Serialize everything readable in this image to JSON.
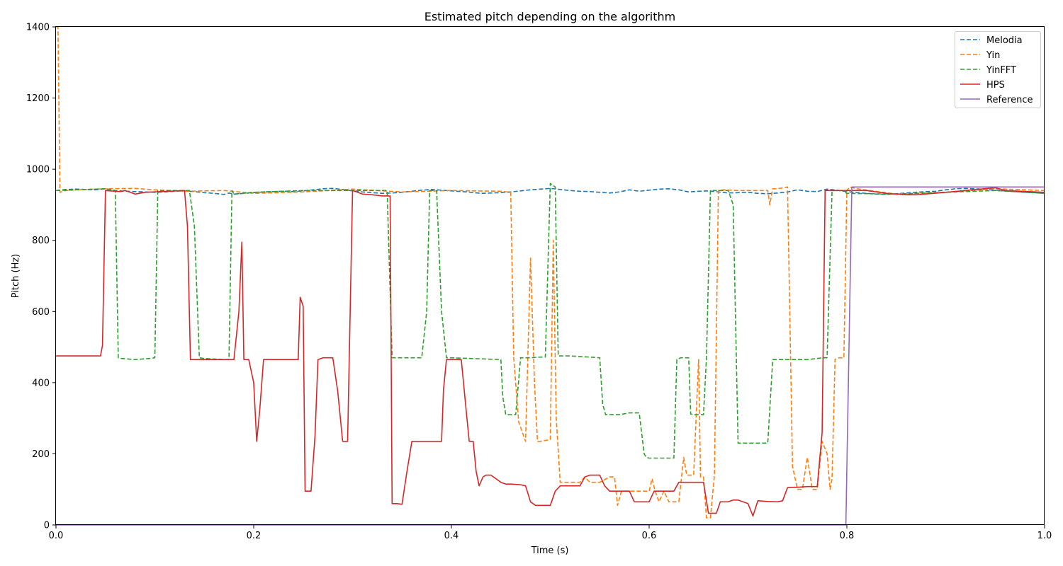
{
  "chart_data": {
    "type": "line",
    "title": "Estimated pitch depending on the algorithm",
    "xlabel": "Time (s)",
    "ylabel": "Pitch (Hz)",
    "xlim": [
      0.0,
      1.0
    ],
    "ylim": [
      0,
      1400
    ],
    "xticks": [
      0.0,
      0.2,
      0.4,
      0.6,
      0.8,
      1.0
    ],
    "xtick_labels": [
      "0.0",
      "0.2",
      "0.4",
      "0.6",
      "0.8",
      "1.0"
    ],
    "yticks": [
      0,
      200,
      400,
      600,
      800,
      1000,
      1200,
      1400
    ],
    "ytick_labels": [
      "0",
      "200",
      "400",
      "600",
      "800",
      "1000",
      "1200",
      "1400"
    ],
    "grid": false,
    "legend_position": "top-right",
    "series": [
      {
        "name": "Melodia",
        "color": "#1f77b4",
        "style": "dashed",
        "x": [
          0.0,
          0.01,
          0.02,
          0.03,
          0.04,
          0.05,
          0.06,
          0.07,
          0.08,
          0.09,
          0.1,
          0.11,
          0.12,
          0.13,
          0.14,
          0.15,
          0.16,
          0.17,
          0.175,
          0.18,
          0.19,
          0.2,
          0.21,
          0.22,
          0.23,
          0.24,
          0.25,
          0.26,
          0.27,
          0.28,
          0.29,
          0.3,
          0.31,
          0.32,
          0.33,
          0.34,
          0.35,
          0.36,
          0.37,
          0.38,
          0.39,
          0.4,
          0.41,
          0.42,
          0.43,
          0.44,
          0.45,
          0.46,
          0.47,
          0.48,
          0.49,
          0.5,
          0.51,
          0.52,
          0.53,
          0.54,
          0.55,
          0.56,
          0.57,
          0.58,
          0.59,
          0.6,
          0.61,
          0.62,
          0.63,
          0.64,
          0.65,
          0.66,
          0.67,
          0.68,
          0.69,
          0.7,
          0.71,
          0.72,
          0.73,
          0.74,
          0.75,
          0.76,
          0.77,
          0.78,
          0.79,
          0.8,
          0.81,
          0.82,
          0.83,
          0.84,
          0.85,
          0.86,
          0.87,
          0.88,
          0.89,
          0.9,
          0.91,
          0.92,
          0.93,
          0.94,
          0.95,
          0.96,
          0.97,
          0.98,
          0.99,
          1.0
        ],
        "y": [
          940,
          943,
          944,
          943,
          942,
          945,
          940,
          938,
          937,
          936,
          935,
          936,
          938,
          939,
          937,
          934,
          932,
          929,
          933,
          930,
          932,
          934,
          936,
          937,
          938,
          937,
          939,
          942,
          945,
          946,
          943,
          939,
          936,
          934,
          932,
          933,
          935,
          938,
          941,
          943,
          941,
          939,
          937,
          935,
          932,
          933,
          934,
          936,
          939,
          942,
          944,
          946,
          943,
          940,
          938,
          937,
          935,
          933,
          936,
          942,
          938,
          941,
          944,
          945,
          942,
          936,
          938,
          939,
          936,
          933,
          934,
          935,
          932,
          931,
          933,
          936,
          942,
          938,
          937,
          944,
          941,
          937,
          934,
          932,
          930,
          929,
          931,
          933,
          935,
          937,
          938,
          942,
          945,
          946,
          945,
          943,
          941,
          939,
          937,
          935,
          934,
          932
        ]
      },
      {
        "name": "Yin",
        "color": "#ff7f0e",
        "style": "dashed",
        "x": [
          0.0,
          0.002,
          0.004,
          0.01,
          0.02,
          0.05,
          0.08,
          0.1,
          0.13,
          0.17,
          0.2,
          0.25,
          0.3,
          0.35,
          0.4,
          0.45,
          0.46,
          0.463,
          0.468,
          0.475,
          0.48,
          0.484,
          0.487,
          0.49,
          0.5,
          0.503,
          0.506,
          0.51,
          0.52,
          0.53,
          0.535,
          0.54,
          0.55,
          0.56,
          0.565,
          0.568,
          0.572,
          0.58,
          0.59,
          0.6,
          0.603,
          0.606,
          0.61,
          0.615,
          0.62,
          0.625,
          0.63,
          0.635,
          0.638,
          0.64,
          0.645,
          0.65,
          0.652,
          0.655,
          0.658,
          0.662,
          0.666,
          0.67,
          0.675,
          0.69,
          0.72,
          0.722,
          0.725,
          0.73,
          0.74,
          0.745,
          0.75,
          0.755,
          0.76,
          0.765,
          0.77,
          0.775,
          0.78,
          0.783,
          0.785,
          0.788,
          0.792,
          0.797,
          0.8,
          0.803,
          0.81,
          0.85,
          0.9,
          0.95,
          1.0
        ],
        "y": [
          1400,
          1400,
          935,
          940,
          942,
          945,
          946,
          942,
          938,
          940,
          932,
          936,
          944,
          936,
          940,
          938,
          935,
          470,
          290,
          235,
          750,
          400,
          235,
          235,
          240,
          800,
          300,
          120,
          120,
          120,
          135,
          120,
          120,
          135,
          135,
          55,
          95,
          95,
          95,
          95,
          130,
          95,
          65,
          95,
          65,
          65,
          65,
          190,
          140,
          140,
          140,
          465,
          135,
          135,
          20,
          20,
          140,
          940,
          942,
          940,
          940,
          900,
          945,
          945,
          950,
          165,
          100,
          100,
          190,
          100,
          100,
          235,
          200,
          100,
          130,
          465,
          470,
          470,
          940,
          950,
          945,
          930,
          935,
          945,
          940
        ]
      },
      {
        "name": "YinFFT",
        "color": "#2ca02c",
        "style": "dashed",
        "x": [
          0.0,
          0.05,
          0.06,
          0.063,
          0.066,
          0.08,
          0.095,
          0.1,
          0.103,
          0.107,
          0.135,
          0.14,
          0.145,
          0.15,
          0.17,
          0.175,
          0.178,
          0.18,
          0.2,
          0.25,
          0.3,
          0.33,
          0.335,
          0.34,
          0.35,
          0.37,
          0.375,
          0.378,
          0.38,
          0.385,
          0.39,
          0.395,
          0.4,
          0.45,
          0.452,
          0.455,
          0.46,
          0.465,
          0.47,
          0.48,
          0.49,
          0.495,
          0.5,
          0.505,
          0.508,
          0.51,
          0.52,
          0.54,
          0.55,
          0.553,
          0.556,
          0.56,
          0.57,
          0.58,
          0.59,
          0.595,
          0.597,
          0.6,
          0.62,
          0.625,
          0.628,
          0.632,
          0.64,
          0.642,
          0.645,
          0.65,
          0.655,
          0.658,
          0.662,
          0.67,
          0.68,
          0.685,
          0.69,
          0.695,
          0.7,
          0.71,
          0.72,
          0.725,
          0.73,
          0.74,
          0.75,
          0.76,
          0.77,
          0.775,
          0.78,
          0.785,
          0.79,
          0.795,
          0.8,
          0.85,
          0.9,
          0.95,
          1.0
        ],
        "y": [
          940,
          945,
          940,
          470,
          468,
          465,
          468,
          470,
          940,
          940,
          940,
          840,
          470,
          468,
          465,
          465,
          940,
          930,
          935,
          940,
          940,
          940,
          940,
          470,
          470,
          470,
          600,
          940,
          940,
          940,
          600,
          470,
          470,
          465,
          360,
          310,
          310,
          310,
          470,
          470,
          472,
          472,
          960,
          950,
          475,
          475,
          475,
          472,
          470,
          340,
          310,
          310,
          310,
          315,
          315,
          200,
          190,
          188,
          188,
          188,
          465,
          470,
          470,
          312,
          310,
          310,
          310,
          470,
          940,
          940,
          940,
          900,
          230,
          230,
          230,
          230,
          230,
          465,
          465,
          465,
          465,
          465,
          468,
          470,
          470,
          940,
          940,
          940,
          932,
          930,
          935,
          940,
          932
        ]
      },
      {
        "name": "HPS",
        "color": "#d62728",
        "style": "solid",
        "x": [
          0.0,
          0.045,
          0.047,
          0.05,
          0.065,
          0.07,
          0.08,
          0.09,
          0.13,
          0.133,
          0.136,
          0.15,
          0.18,
          0.185,
          0.188,
          0.19,
          0.195,
          0.2,
          0.203,
          0.206,
          0.21,
          0.22,
          0.245,
          0.247,
          0.25,
          0.252,
          0.258,
          0.262,
          0.265,
          0.27,
          0.28,
          0.285,
          0.29,
          0.295,
          0.3,
          0.305,
          0.31,
          0.32,
          0.33,
          0.338,
          0.34,
          0.345,
          0.35,
          0.355,
          0.36,
          0.365,
          0.37,
          0.38,
          0.39,
          0.392,
          0.395,
          0.4,
          0.41,
          0.415,
          0.418,
          0.422,
          0.425,
          0.428,
          0.432,
          0.435,
          0.44,
          0.45,
          0.455,
          0.46,
          0.47,
          0.475,
          0.48,
          0.485,
          0.49,
          0.5,
          0.505,
          0.51,
          0.53,
          0.535,
          0.54,
          0.55,
          0.555,
          0.56,
          0.57,
          0.58,
          0.585,
          0.59,
          0.6,
          0.605,
          0.61,
          0.62,
          0.625,
          0.63,
          0.64,
          0.65,
          0.655,
          0.66,
          0.668,
          0.672,
          0.68,
          0.685,
          0.69,
          0.695,
          0.7,
          0.705,
          0.71,
          0.72,
          0.73,
          0.735,
          0.74,
          0.75,
          0.76,
          0.77,
          0.775,
          0.778,
          0.78,
          0.8,
          0.82,
          0.84,
          0.86,
          0.87,
          0.9,
          0.95,
          0.96,
          1.0
        ],
        "y": [
          475,
          475,
          505,
          940,
          937,
          940,
          930,
          935,
          940,
          840,
          465,
          465,
          465,
          600,
          795,
          465,
          465,
          400,
          235,
          320,
          465,
          465,
          465,
          640,
          615,
          95,
          95,
          250,
          465,
          470,
          470,
          375,
          235,
          235,
          940,
          935,
          930,
          928,
          925,
          925,
          60,
          60,
          58,
          150,
          235,
          235,
          235,
          235,
          235,
          380,
          465,
          465,
          465,
          320,
          235,
          235,
          150,
          110,
          135,
          140,
          140,
          120,
          115,
          115,
          113,
          110,
          65,
          55,
          55,
          55,
          95,
          110,
          110,
          135,
          140,
          140,
          110,
          95,
          95,
          95,
          65,
          65,
          65,
          95,
          95,
          95,
          95,
          120,
          120,
          120,
          120,
          33,
          33,
          65,
          65,
          70,
          70,
          65,
          60,
          25,
          68,
          66,
          65,
          68,
          105,
          106,
          108,
          108,
          260,
          940,
          940,
          940,
          940,
          932,
          928,
          928,
          935,
          948,
          940,
          935
        ]
      },
      {
        "name": "Reference",
        "color": "#9467bd",
        "style": "solid",
        "x": [
          0.0,
          0.799,
          0.805,
          1.0
        ],
        "y": [
          0,
          0,
          950,
          950
        ]
      }
    ]
  }
}
